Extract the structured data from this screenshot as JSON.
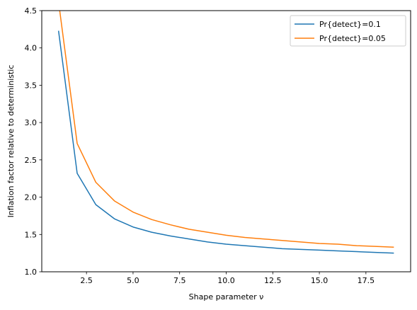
{
  "chart_data": {
    "type": "line",
    "xlabel": "Shape parameter ν",
    "ylabel": "Inflation factor relative to deterministic",
    "xlim": [
      0.1,
      19.9
    ],
    "ylim": [
      1.0,
      4.5
    ],
    "xticks": [
      2.5,
      5.0,
      7.5,
      10.0,
      12.5,
      15.0,
      17.5
    ],
    "xtick_labels": [
      "2.5",
      "5.0",
      "7.5",
      "10.0",
      "12.5",
      "15.0",
      "17.5"
    ],
    "yticks": [
      1.0,
      1.5,
      2.0,
      2.5,
      3.0,
      3.5,
      4.0,
      4.5
    ],
    "ytick_labels": [
      "1.0",
      "1.5",
      "2.0",
      "2.5",
      "3.0",
      "3.5",
      "4.0",
      "4.5"
    ],
    "grid": false,
    "legend_position": "top-right",
    "x": [
      1,
      2,
      3,
      4,
      5,
      6,
      7,
      8,
      9,
      10,
      11,
      12,
      13,
      14,
      15,
      16,
      17,
      18,
      19
    ],
    "series": [
      {
        "name": "Pr{detect}=0.1",
        "color": "#1f77b4",
        "values": [
          4.23,
          2.32,
          1.9,
          1.71,
          1.6,
          1.53,
          1.48,
          1.44,
          1.4,
          1.37,
          1.35,
          1.33,
          1.31,
          1.3,
          1.29,
          1.28,
          1.27,
          1.26,
          1.25
        ]
      },
      {
        "name": "Pr{detect}=0.05",
        "color": "#ff7f0e",
        "values": [
          4.62,
          2.72,
          2.2,
          1.95,
          1.8,
          1.7,
          1.63,
          1.57,
          1.53,
          1.49,
          1.46,
          1.44,
          1.42,
          1.4,
          1.38,
          1.37,
          1.35,
          1.34,
          1.33
        ]
      }
    ]
  }
}
